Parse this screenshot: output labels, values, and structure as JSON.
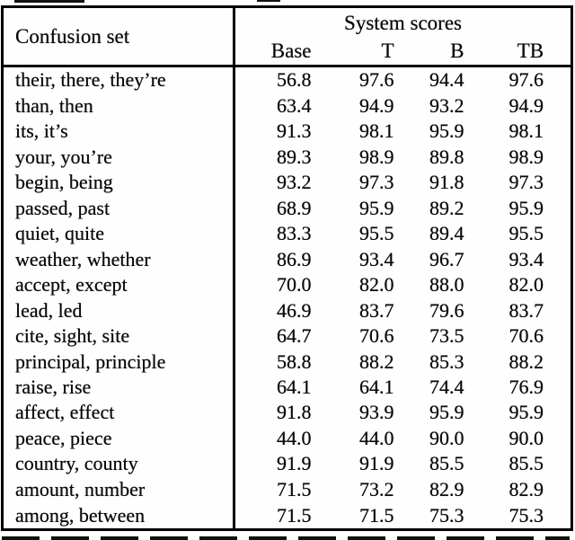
{
  "table": {
    "col1_header": "Confusion set",
    "scores_header": "System scores",
    "subheaders": [
      "Base",
      "T",
      "B",
      "TB"
    ],
    "rows": [
      {
        "set": "their, there, they’re",
        "scores": [
          "56.8",
          "97.6",
          "94.4",
          "97.6"
        ]
      },
      {
        "set": "than, then",
        "scores": [
          "63.4",
          "94.9",
          "93.2",
          "94.9"
        ]
      },
      {
        "set": "its, it’s",
        "scores": [
          "91.3",
          "98.1",
          "95.9",
          "98.1"
        ]
      },
      {
        "set": "your, you’re",
        "scores": [
          "89.3",
          "98.9",
          "89.8",
          "98.9"
        ]
      },
      {
        "set": "begin, being",
        "scores": [
          "93.2",
          "97.3",
          "91.8",
          "97.3"
        ]
      },
      {
        "set": "passed, past",
        "scores": [
          "68.9",
          "95.9",
          "89.2",
          "95.9"
        ]
      },
      {
        "set": "quiet, quite",
        "scores": [
          "83.3",
          "95.5",
          "89.4",
          "95.5"
        ]
      },
      {
        "set": "weather, whether",
        "scores": [
          "86.9",
          "93.4",
          "96.7",
          "93.4"
        ]
      },
      {
        "set": "accept, except",
        "scores": [
          "70.0",
          "82.0",
          "88.0",
          "82.0"
        ]
      },
      {
        "set": "lead, led",
        "scores": [
          "46.9",
          "83.7",
          "79.6",
          "83.7"
        ]
      },
      {
        "set": "cite, sight, site",
        "scores": [
          "64.7",
          "70.6",
          "73.5",
          "70.6"
        ]
      },
      {
        "set": "principal, principle",
        "scores": [
          "58.8",
          "88.2",
          "85.3",
          "88.2"
        ]
      },
      {
        "set": "raise, rise",
        "scores": [
          "64.1",
          "64.1",
          "74.4",
          "76.9"
        ]
      },
      {
        "set": "affect, effect",
        "scores": [
          "91.8",
          "93.9",
          "95.9",
          "95.9"
        ]
      },
      {
        "set": "peace, piece",
        "scores": [
          "44.0",
          "44.0",
          "90.0",
          "90.0"
        ]
      },
      {
        "set": "country, county",
        "scores": [
          "91.9",
          "91.9",
          "85.5",
          "85.5"
        ]
      },
      {
        "set": "amount, number",
        "scores": [
          "71.5",
          "73.2",
          "82.9",
          "82.9"
        ]
      },
      {
        "set": "among, between",
        "scores": [
          "71.5",
          "71.5",
          "75.3",
          "75.3"
        ]
      }
    ]
  }
}
